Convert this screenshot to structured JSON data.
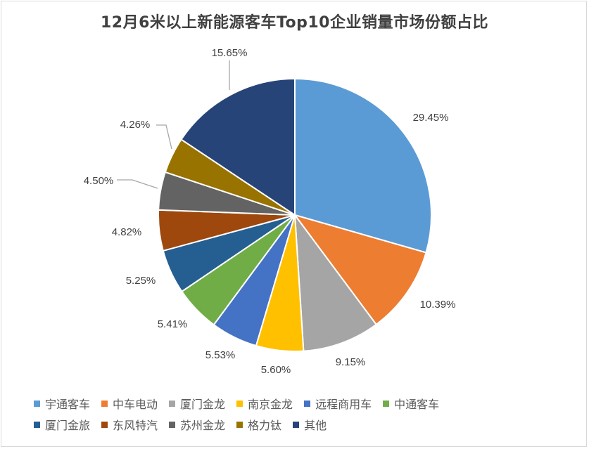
{
  "chart_data": {
    "type": "pie",
    "title": "12月6米以上新能源客车Top10企业销量市场份额占比",
    "slices": [
      {
        "name": "宇通客车",
        "value": 29.45,
        "label": "29.45%",
        "color": "#5b9bd5"
      },
      {
        "name": "中车电动",
        "value": 10.39,
        "label": "10.39%",
        "color": "#ed7d31"
      },
      {
        "name": "厦门金龙",
        "value": 9.15,
        "label": "9.15%",
        "color": "#a5a5a5"
      },
      {
        "name": "南京金龙",
        "value": 5.6,
        "label": "5.60%",
        "color": "#ffc000"
      },
      {
        "name": "远程商用车",
        "value": 5.53,
        "label": "5.53%",
        "color": "#4472c4"
      },
      {
        "name": "中通客车",
        "value": 5.41,
        "label": "5.41%",
        "color": "#70ad47"
      },
      {
        "name": "厦门金旅",
        "value": 5.25,
        "label": "5.25%",
        "color": "#255e91"
      },
      {
        "name": "东风特汽",
        "value": 4.82,
        "label": "4.82%",
        "color": "#9e480e"
      },
      {
        "name": "苏州金龙",
        "value": 4.5,
        "label": "4.50%",
        "color": "#636363"
      },
      {
        "name": "格力钛",
        "value": 4.26,
        "label": "4.26%",
        "color": "#997300"
      },
      {
        "name": "其他",
        "value": 15.65,
        "label": "15.65%",
        "color": "#264478"
      }
    ],
    "legend_position": "bottom"
  }
}
